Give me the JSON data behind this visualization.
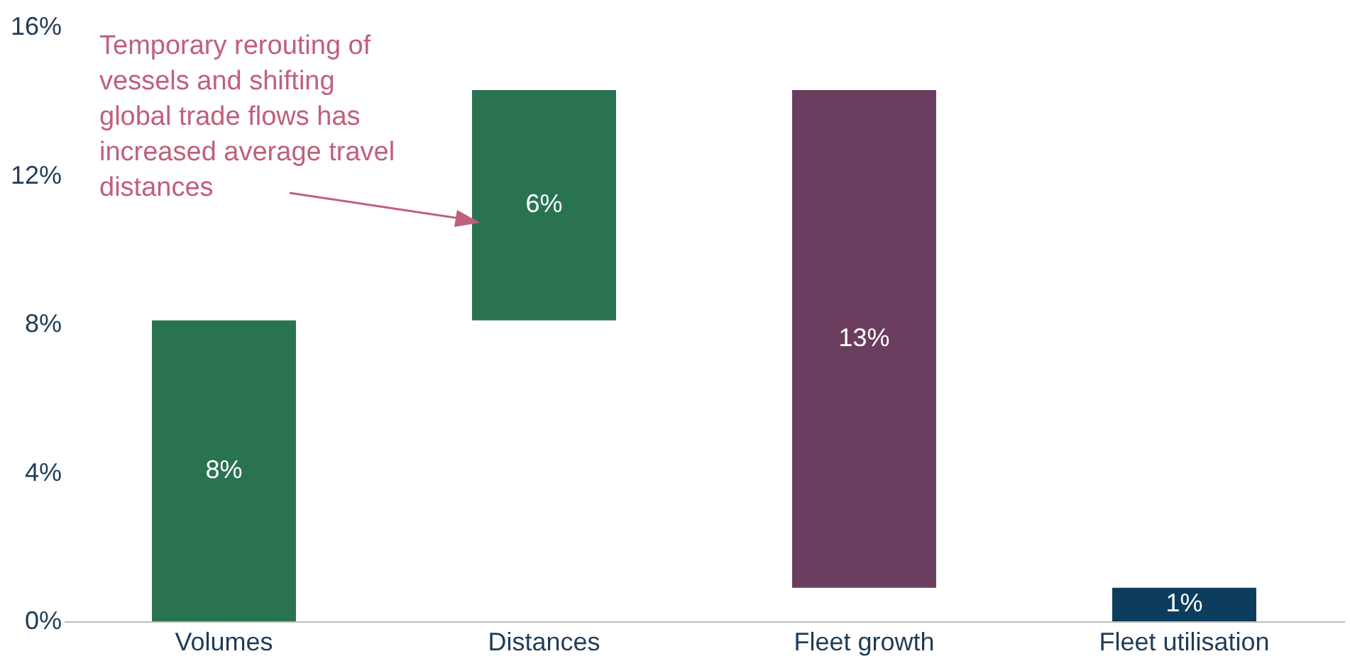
{
  "chart_data": {
    "type": "bar",
    "categories": [
      "Volumes",
      "Distances",
      "Fleet growth",
      "Fleet utilisation"
    ],
    "values": [
      8.1,
      6.2,
      -13.4,
      0.9
    ],
    "base": [
      0,
      8.1,
      14.3,
      0
    ],
    "colors": [
      "#2a7352",
      "#2a7352",
      "#6b3d5e",
      "#0d3d5c"
    ],
    "value_labels": [
      "8%",
      "6%",
      "13%",
      "1%"
    ],
    "ylim": [
      0,
      16
    ],
    "yticks": [
      {
        "value": 0,
        "label": "0%"
      },
      {
        "value": 4,
        "label": "4%"
      },
      {
        "value": 8,
        "label": "8%"
      },
      {
        "value": 12,
        "label": "12%"
      },
      {
        "value": 16,
        "label": "16%"
      }
    ],
    "annotations": [
      "Temporary rerouting of vessels and shifting global trade flows has increased average travel distances"
    ]
  }
}
